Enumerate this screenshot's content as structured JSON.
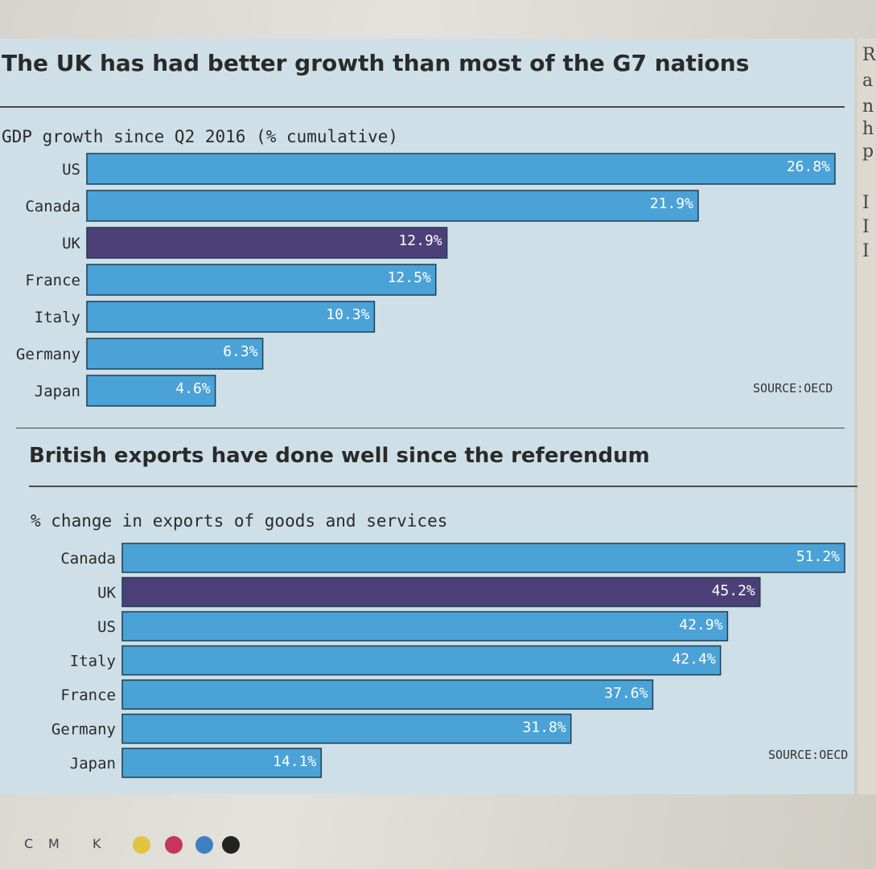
{
  "chart_data": [
    {
      "type": "bar",
      "title": "The UK has had better growth than most of the G7 nations",
      "subtitle": "GDP growth since Q2 2016 (% cumulative)",
      "categories": [
        "US",
        "Canada",
        "UK",
        "France",
        "Italy",
        "Germany",
        "Japan"
      ],
      "values": [
        26.8,
        21.9,
        12.9,
        12.5,
        10.3,
        6.3,
        4.6
      ],
      "value_labels": [
        "26.8%",
        "21.9%",
        "12.9%",
        "12.5%",
        "10.3%",
        "6.3%",
        "4.6%"
      ],
      "highlight": "UK",
      "source": "SOURCE:OECD",
      "orientation": "horizontal",
      "grid": false,
      "colors": {
        "bar": "#4ba2d6",
        "highlight": "#4c3f78",
        "label_bg": "#f3f1ee"
      }
    },
    {
      "type": "bar",
      "title": "British exports have done well since the referendum",
      "subtitle": "% change in exports of goods and services",
      "categories": [
        "Canada",
        "UK",
        "US",
        "Italy",
        "France",
        "Germany",
        "Japan"
      ],
      "values": [
        51.2,
        45.2,
        42.9,
        42.4,
        37.6,
        31.8,
        14.1
      ],
      "value_labels": [
        "51.2%",
        "45.2%",
        "42.9%",
        "42.4%",
        "37.6%",
        "31.8%",
        "14.1%"
      ],
      "highlight": "UK",
      "source": "SOURCE:OECD",
      "orientation": "horizontal",
      "grid": false,
      "colors": {
        "bar": "#4ba2d6",
        "highlight": "#4c3f78",
        "label_bg": "#f3f1ee"
      }
    }
  ],
  "margin_letters": [
    "R",
    "a",
    "n",
    "h",
    "p",
    "I",
    "I",
    "I"
  ],
  "print_marks": {
    "letters": [
      "C",
      "M",
      "K"
    ],
    "swatches": [
      "#e3c441",
      "#c8355a",
      "#3f7fc4",
      "#222222"
    ]
  }
}
